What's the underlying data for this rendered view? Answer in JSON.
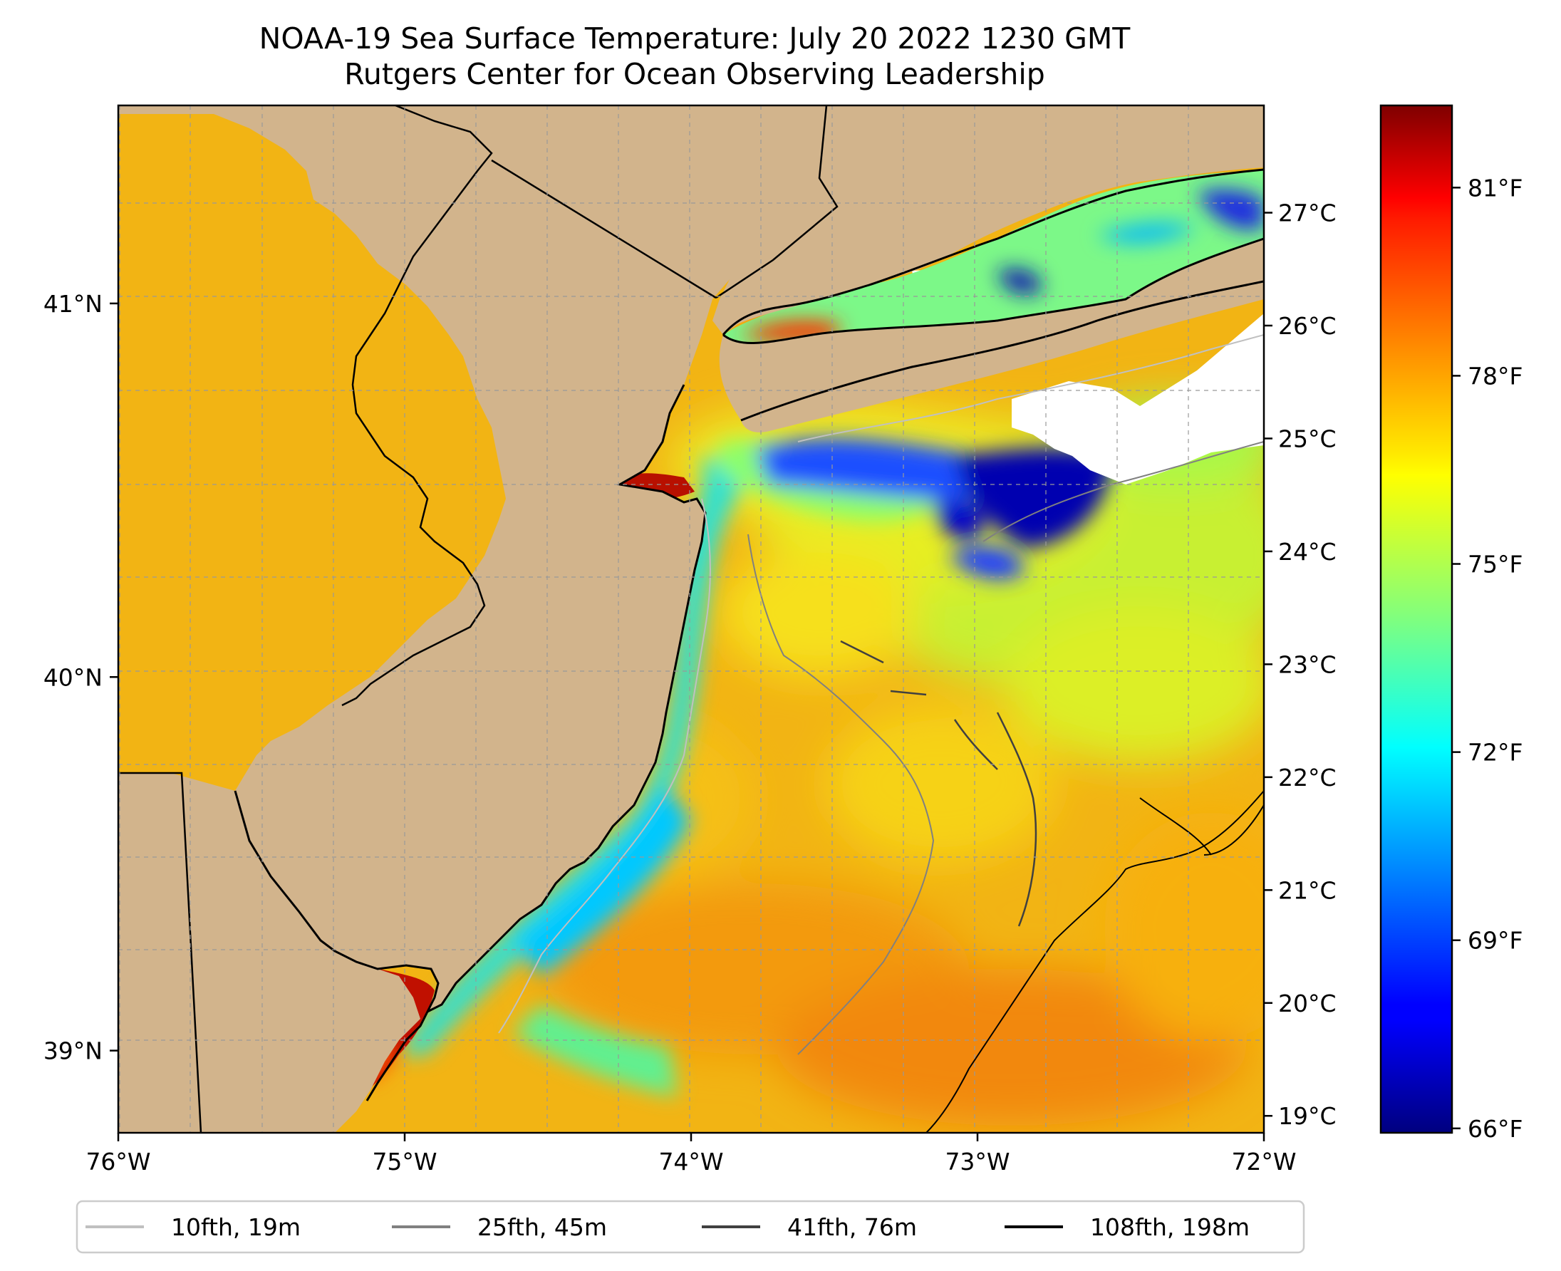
{
  "title": {
    "line1": "NOAA-19 Sea Surface Temperature: July 20 2022 1230 GMT",
    "line2": "Rutgers Center for Ocean Observing Leadership"
  },
  "map": {
    "lon_range": [
      -76.0,
      -72.0
    ],
    "lat_range": [
      38.78,
      41.53
    ],
    "land_color": "#d2b48c",
    "gridlines": true,
    "lon_ticks": [
      {
        "value": -76,
        "label": "76°W"
      },
      {
        "value": -75,
        "label": "75°W"
      },
      {
        "value": -74,
        "label": "74°W"
      },
      {
        "value": -73,
        "label": "73°W"
      },
      {
        "value": -72,
        "label": "72°W"
      }
    ],
    "lat_ticks": [
      {
        "value": 41,
        "label": "41°N"
      },
      {
        "value": 40,
        "label": "40°N"
      },
      {
        "value": 39,
        "label": "39°N"
      }
    ]
  },
  "colorbar": {
    "colormap": "jet",
    "celsius_range": [
      18.85,
      27.95
    ],
    "celsius_ticks": [
      {
        "value": 19,
        "label": "19°C"
      },
      {
        "value": 20,
        "label": "20°C"
      },
      {
        "value": 21,
        "label": "21°C"
      },
      {
        "value": 22,
        "label": "22°C"
      },
      {
        "value": 23,
        "label": "23°C"
      },
      {
        "value": 24,
        "label": "24°C"
      },
      {
        "value": 25,
        "label": "25°C"
      },
      {
        "value": 26,
        "label": "26°C"
      },
      {
        "value": 27,
        "label": "27°C"
      }
    ],
    "fahrenheit_ticks": [
      {
        "value": 66,
        "label": "66°F"
      },
      {
        "value": 69,
        "label": "69°F"
      },
      {
        "value": 72,
        "label": "72°F"
      },
      {
        "value": 75,
        "label": "75°F"
      },
      {
        "value": 78,
        "label": "78°F"
      },
      {
        "value": 81,
        "label": "81°F"
      }
    ]
  },
  "legend": {
    "placement": "bottom",
    "entries": [
      {
        "label": "10fth, 19m",
        "color": "#c0c0c0"
      },
      {
        "label": "25fth, 45m",
        "color": "#808080"
      },
      {
        "label": "41fth, 76m",
        "color": "#404040"
      },
      {
        "label": "108fth, 198m",
        "color": "#000000"
      }
    ]
  }
}
